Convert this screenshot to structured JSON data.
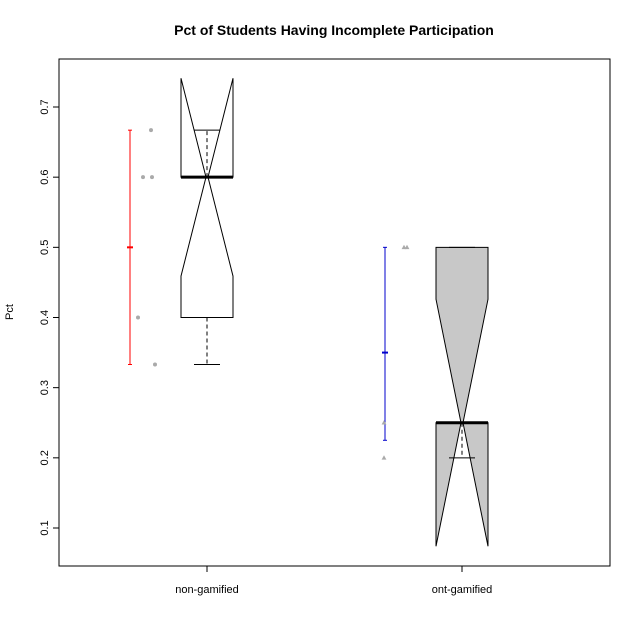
{
  "chart_data": {
    "type": "boxplot",
    "title": "Pct of Students Having Incomplete Participation",
    "xlabel": "",
    "ylabel": "Pct",
    "ylim": [
      0.05,
      0.775
    ],
    "yticks": [
      "0.1",
      "0.2",
      "0.3",
      "0.4",
      "0.5",
      "0.6",
      "0.7"
    ],
    "grid": false,
    "categories": [
      "non-gamified",
      "ont-gamified"
    ],
    "boxes": [
      {
        "category": "non-gamified",
        "fill": "#ffffff",
        "notched": true,
        "whisker_low": 0.333,
        "q1": 0.4,
        "median": 0.6,
        "q3": 0.6,
        "whisker_high": 0.667,
        "notch_low": 0.459,
        "notch_high": 0.741
      },
      {
        "category": "ont-gamified",
        "fill": "#c8c8c8",
        "notched": true,
        "whisker_low": 0.2,
        "q1": 0.25,
        "median": 0.25,
        "q3": 0.5,
        "whisker_high": 0.5,
        "notch_low": 0.074,
        "notch_high": 0.426
      }
    ],
    "mean_error_bars": [
      {
        "category": "non-gamified",
        "color": "#ff0000",
        "mean": 0.5,
        "low": 0.333,
        "high": 0.667
      },
      {
        "category": "ont-gamified",
        "color": "#0000cc",
        "mean": 0.35,
        "low": 0.225,
        "high": 0.5
      }
    ],
    "points": [
      {
        "category": "non-gamified",
        "shape": "circle",
        "color": "#aaaaaa",
        "values": [
          0.333,
          0.4,
          0.6,
          0.6,
          0.667
        ]
      },
      {
        "category": "ont-gamified",
        "shape": "triangle",
        "color": "#aaaaaa",
        "values": [
          0.2,
          0.25,
          0.5,
          0.5
        ]
      }
    ]
  }
}
